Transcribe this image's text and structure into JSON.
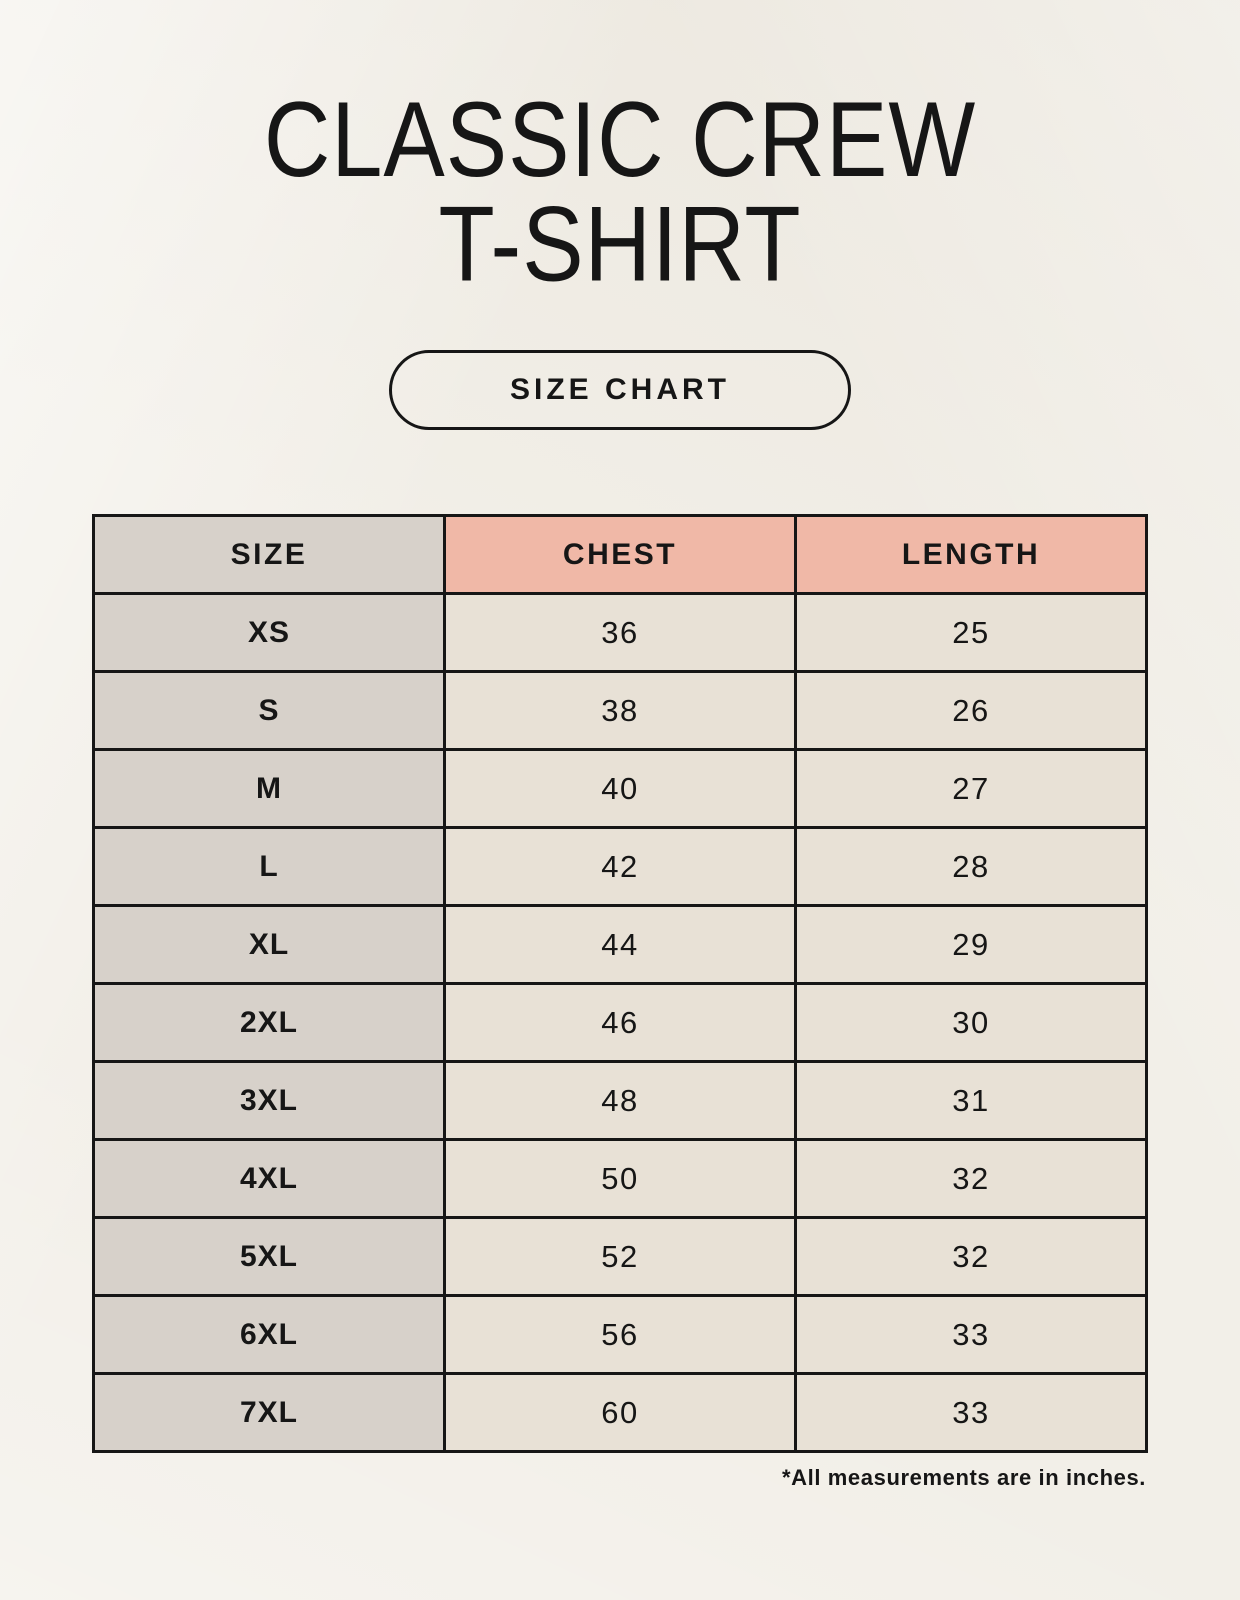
{
  "header": {
    "title_line1": "CLASSIC CREW",
    "title_line2": "T-SHIRT",
    "badge_label": "SIZE CHART"
  },
  "chart_data": {
    "type": "table",
    "title": "CLASSIC CREW T-SHIRT — SIZE CHART",
    "columns": [
      "SIZE",
      "CHEST",
      "LENGTH"
    ],
    "rows": [
      [
        "XS",
        "36",
        "25"
      ],
      [
        "S",
        "38",
        "26"
      ],
      [
        "M",
        "40",
        "27"
      ],
      [
        "L",
        "42",
        "28"
      ],
      [
        "XL",
        "44",
        "29"
      ],
      [
        "2XL",
        "46",
        "30"
      ],
      [
        "3XL",
        "48",
        "31"
      ],
      [
        "4XL",
        "50",
        "32"
      ],
      [
        "5XL",
        "52",
        "32"
      ],
      [
        "6XL",
        "56",
        "33"
      ],
      [
        "7XL",
        "60",
        "33"
      ]
    ],
    "units": "inches"
  },
  "footer": {
    "note": "*All measurements are in inches."
  },
  "colors": {
    "page_background": "#f2efe8",
    "header_accent": "#f0b8a7",
    "size_column": "#d7d1ca",
    "cell_background": "#e8e1d6",
    "border": "#161616",
    "text": "#161616"
  }
}
